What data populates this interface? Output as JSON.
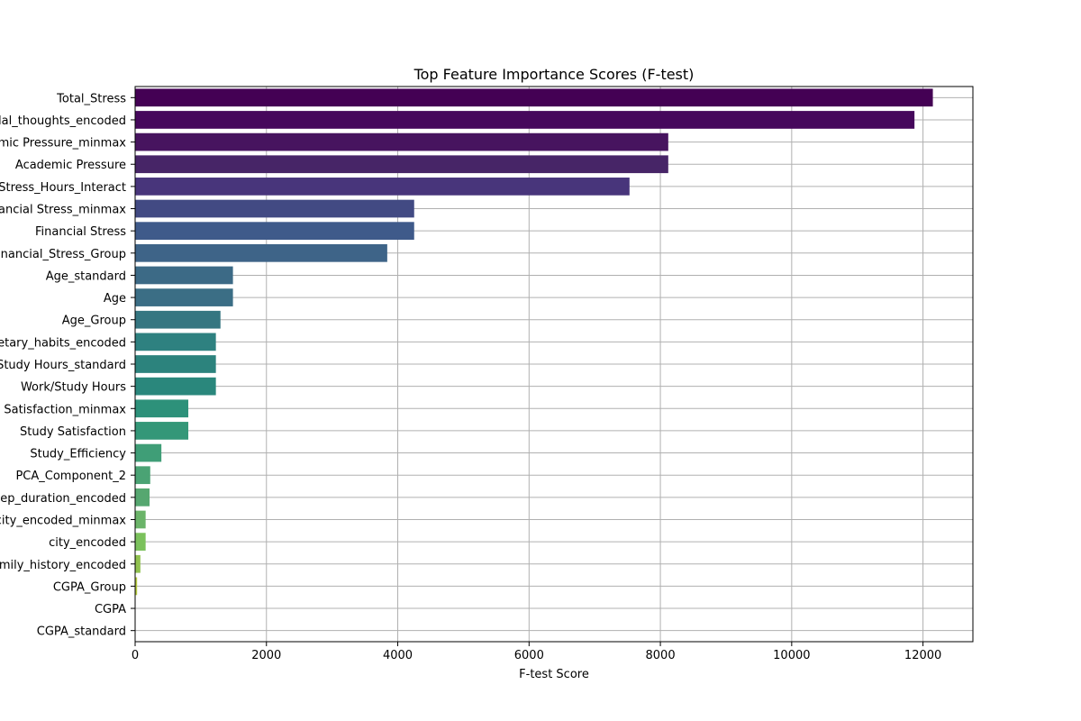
{
  "chart_data": {
    "type": "bar",
    "orientation": "horizontal",
    "title": "Top Feature Importance Scores (F-test)",
    "xlabel": "F-test Score",
    "ylabel": "",
    "xlim": [
      0,
      12760
    ],
    "xticks": [
      0,
      2000,
      4000,
      6000,
      8000,
      10000,
      12000
    ],
    "grid": true,
    "palette": "viridis",
    "categories": [
      "Total_Stress",
      "Have you ever had suicidal_thoughts_encoded",
      "Academic Pressure_minmax",
      "Academic Pressure",
      "Stress_Hours_Interact",
      "Financial Stress_minmax",
      "Financial Stress",
      "Financial_Stress_Group",
      "Age_standard",
      "Age",
      "Age_Group",
      "dietary_habits_encoded",
      "Work/Study Hours_standard",
      "Work/Study Hours",
      "Study Satisfaction_minmax",
      "Study Satisfaction",
      "Study_Efficiency",
      "PCA_Component_2",
      "sleep_duration_encoded",
      "city_encoded_minmax",
      "city_encoded",
      "family_history_encoded",
      "CGPA_Group",
      "CGPA",
      "CGPA_standard"
    ],
    "values": [
      12150,
      11870,
      8120,
      8120,
      7530,
      4250,
      4250,
      3840,
      1490,
      1490,
      1300,
      1230,
      1230,
      1230,
      810,
      810,
      400,
      230,
      220,
      160,
      160,
      80,
      30,
      5,
      5
    ],
    "colors": [
      "#440154",
      "#46085c",
      "#47145f",
      "#472567",
      "#48357b",
      "#424a83",
      "#3f5a8a",
      "#3e6488",
      "#3c6a86",
      "#3b6e85",
      "#357681",
      "#2e8180",
      "#2c837d",
      "#2a877c",
      "#2d917a",
      "#349778",
      "#3f9e77",
      "#4aa374",
      "#56a770",
      "#6bb469",
      "#7bc15c",
      "#90c14e",
      "#b5c93f",
      "#cfcf2c",
      "#fde725"
    ]
  }
}
